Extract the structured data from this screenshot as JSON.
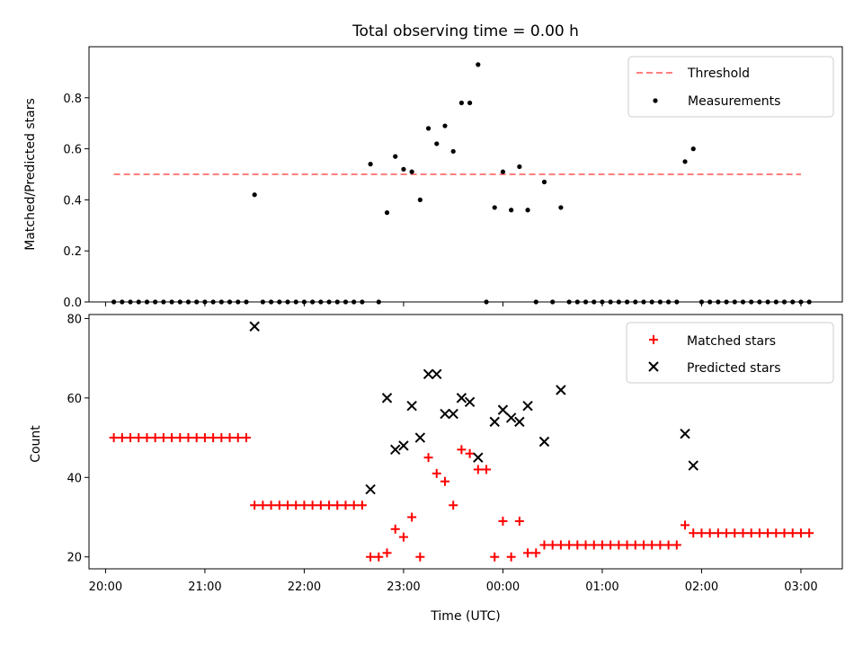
{
  "chart_data": [
    {
      "type": "scatter",
      "title": "Total observing time = 0.00 h",
      "xlabel": "",
      "ylabel": "Matched/Predicted stars",
      "x_axis": "shared time axis, hours after 20:00 UTC labels",
      "xlim": [
        "19:50",
        "03:25"
      ],
      "ylim": [
        0,
        1.0
      ],
      "yticks": [
        "0.0",
        "0.2",
        "0.4",
        "0.6",
        "0.8"
      ],
      "legend_position": "top-right",
      "threshold": {
        "name": "Threshold",
        "value": 0.5,
        "x_start": "20:05",
        "x_end": "03:00",
        "color": "#ff7f7f"
      },
      "series": [
        {
          "name": "Measurements",
          "color": "#000000",
          "points": [
            [
              "20:05",
              0
            ],
            [
              "20:10",
              0
            ],
            [
              "20:15",
              0
            ],
            [
              "20:20",
              0
            ],
            [
              "20:25",
              0
            ],
            [
              "20:30",
              0
            ],
            [
              "20:35",
              0
            ],
            [
              "20:40",
              0
            ],
            [
              "20:45",
              0
            ],
            [
              "20:50",
              0
            ],
            [
              "20:55",
              0
            ],
            [
              "21:00",
              0
            ],
            [
              "21:05",
              0
            ],
            [
              "21:10",
              0
            ],
            [
              "21:15",
              0
            ],
            [
              "21:20",
              0
            ],
            [
              "21:25",
              0
            ],
            [
              "21:30",
              0.42
            ],
            [
              "21:35",
              0
            ],
            [
              "21:40",
              0
            ],
            [
              "21:45",
              0
            ],
            [
              "21:50",
              0
            ],
            [
              "21:55",
              0
            ],
            [
              "22:00",
              0
            ],
            [
              "22:05",
              0
            ],
            [
              "22:10",
              0
            ],
            [
              "22:15",
              0
            ],
            [
              "22:20",
              0
            ],
            [
              "22:25",
              0
            ],
            [
              "22:30",
              0
            ],
            [
              "22:35",
              0
            ],
            [
              "22:40",
              0.54
            ],
            [
              "22:45",
              0
            ],
            [
              "22:50",
              0.35
            ],
            [
              "22:55",
              0.57
            ],
            [
              "23:00",
              0.52
            ],
            [
              "23:05",
              0.51
            ],
            [
              "23:10",
              0.4
            ],
            [
              "23:15",
              0.68
            ],
            [
              "23:20",
              0.62
            ],
            [
              "23:25",
              0.69
            ],
            [
              "23:30",
              0.59
            ],
            [
              "23:35",
              0.78
            ],
            [
              "23:40",
              0.78
            ],
            [
              "23:45",
              0.93
            ],
            [
              "23:50",
              0
            ],
            [
              "23:55",
              0.37
            ],
            [
              "00:00",
              0.51
            ],
            [
              "00:05",
              0.36
            ],
            [
              "00:10",
              0.53
            ],
            [
              "00:15",
              0.36
            ],
            [
              "00:20",
              0
            ],
            [
              "00:25",
              0.47
            ],
            [
              "00:30",
              0
            ],
            [
              "00:35",
              0.37
            ],
            [
              "00:40",
              0
            ],
            [
              "00:45",
              0
            ],
            [
              "00:50",
              0
            ],
            [
              "00:55",
              0
            ],
            [
              "01:00",
              0
            ],
            [
              "01:05",
              0
            ],
            [
              "01:10",
              0
            ],
            [
              "01:15",
              0
            ],
            [
              "01:20",
              0
            ],
            [
              "01:25",
              0
            ],
            [
              "01:30",
              0
            ],
            [
              "01:35",
              0
            ],
            [
              "01:40",
              0
            ],
            [
              "01:45",
              0
            ],
            [
              "01:50",
              0.55
            ],
            [
              "01:55",
              0.6
            ],
            [
              "02:00",
              0
            ],
            [
              "02:05",
              0
            ],
            [
              "02:10",
              0
            ],
            [
              "02:15",
              0
            ],
            [
              "02:20",
              0
            ],
            [
              "02:25",
              0
            ],
            [
              "02:30",
              0
            ],
            [
              "02:35",
              0
            ],
            [
              "02:40",
              0
            ],
            [
              "02:45",
              0
            ],
            [
              "02:50",
              0
            ],
            [
              "02:55",
              0
            ],
            [
              "03:00",
              0
            ],
            [
              "03:05",
              0
            ]
          ]
        }
      ]
    },
    {
      "type": "scatter",
      "title": "",
      "xlabel": "Time (UTC)",
      "ylabel": "Count",
      "xlim": [
        "19:50",
        "03:25"
      ],
      "xticks": [
        "20:00",
        "21:00",
        "22:00",
        "23:00",
        "00:00",
        "01:00",
        "02:00",
        "03:00"
      ],
      "ylim": [
        17,
        81
      ],
      "yticks": [
        "20",
        "40",
        "60",
        "80"
      ],
      "legend_position": "top-right",
      "series": [
        {
          "name": "Matched stars",
          "marker": "plus",
          "color": "#ff0000",
          "points": [
            [
              "20:05",
              50
            ],
            [
              "20:10",
              50
            ],
            [
              "20:15",
              50
            ],
            [
              "20:20",
              50
            ],
            [
              "20:25",
              50
            ],
            [
              "20:30",
              50
            ],
            [
              "20:35",
              50
            ],
            [
              "20:40",
              50
            ],
            [
              "20:45",
              50
            ],
            [
              "20:50",
              50
            ],
            [
              "20:55",
              50
            ],
            [
              "21:00",
              50
            ],
            [
              "21:05",
              50
            ],
            [
              "21:10",
              50
            ],
            [
              "21:15",
              50
            ],
            [
              "21:20",
              50
            ],
            [
              "21:25",
              50
            ],
            [
              "21:30",
              33
            ],
            [
              "21:35",
              33
            ],
            [
              "21:40",
              33
            ],
            [
              "21:45",
              33
            ],
            [
              "21:50",
              33
            ],
            [
              "21:55",
              33
            ],
            [
              "22:00",
              33
            ],
            [
              "22:05",
              33
            ],
            [
              "22:10",
              33
            ],
            [
              "22:15",
              33
            ],
            [
              "22:20",
              33
            ],
            [
              "22:25",
              33
            ],
            [
              "22:30",
              33
            ],
            [
              "22:35",
              33
            ],
            [
              "22:40",
              20
            ],
            [
              "22:45",
              20
            ],
            [
              "22:50",
              21
            ],
            [
              "22:55",
              27
            ],
            [
              "23:00",
              25
            ],
            [
              "23:05",
              30
            ],
            [
              "23:10",
              20
            ],
            [
              "23:15",
              45
            ],
            [
              "23:20",
              41
            ],
            [
              "23:25",
              39
            ],
            [
              "23:30",
              33
            ],
            [
              "23:35",
              47
            ],
            [
              "23:40",
              46
            ],
            [
              "23:45",
              42
            ],
            [
              "23:50",
              42
            ],
            [
              "23:55",
              20
            ],
            [
              "00:00",
              29
            ],
            [
              "00:05",
              20
            ],
            [
              "00:10",
              29
            ],
            [
              "00:15",
              21
            ],
            [
              "00:20",
              21
            ],
            [
              "00:25",
              23
            ],
            [
              "00:30",
              23
            ],
            [
              "00:35",
              23
            ],
            [
              "00:40",
              23
            ],
            [
              "00:45",
              23
            ],
            [
              "00:50",
              23
            ],
            [
              "00:55",
              23
            ],
            [
              "01:00",
              23
            ],
            [
              "01:05",
              23
            ],
            [
              "01:10",
              23
            ],
            [
              "01:15",
              23
            ],
            [
              "01:20",
              23
            ],
            [
              "01:25",
              23
            ],
            [
              "01:30",
              23
            ],
            [
              "01:35",
              23
            ],
            [
              "01:40",
              23
            ],
            [
              "01:45",
              23
            ],
            [
              "01:50",
              28
            ],
            [
              "01:55",
              26
            ],
            [
              "02:00",
              26
            ],
            [
              "02:05",
              26
            ],
            [
              "02:10",
              26
            ],
            [
              "02:15",
              26
            ],
            [
              "02:20",
              26
            ],
            [
              "02:25",
              26
            ],
            [
              "02:30",
              26
            ],
            [
              "02:35",
              26
            ],
            [
              "02:40",
              26
            ],
            [
              "02:45",
              26
            ],
            [
              "02:50",
              26
            ],
            [
              "02:55",
              26
            ],
            [
              "03:00",
              26
            ],
            [
              "03:05",
              26
            ]
          ]
        },
        {
          "name": "Predicted stars",
          "marker": "x",
          "color": "#000000",
          "points": [
            [
              "21:30",
              78
            ],
            [
              "22:40",
              37
            ],
            [
              "22:50",
              60
            ],
            [
              "22:55",
              47
            ],
            [
              "23:00",
              48
            ],
            [
              "23:05",
              58
            ],
            [
              "23:10",
              50
            ],
            [
              "23:15",
              66
            ],
            [
              "23:20",
              66
            ],
            [
              "23:25",
              56
            ],
            [
              "23:30",
              56
            ],
            [
              "23:35",
              60
            ],
            [
              "23:40",
              59
            ],
            [
              "23:45",
              45
            ],
            [
              "23:55",
              54
            ],
            [
              "00:00",
              57
            ],
            [
              "00:05",
              55
            ],
            [
              "00:10",
              54
            ],
            [
              "00:15",
              58
            ],
            [
              "00:25",
              49
            ],
            [
              "00:35",
              62
            ],
            [
              "01:50",
              51
            ],
            [
              "01:55",
              43
            ]
          ]
        }
      ]
    }
  ]
}
